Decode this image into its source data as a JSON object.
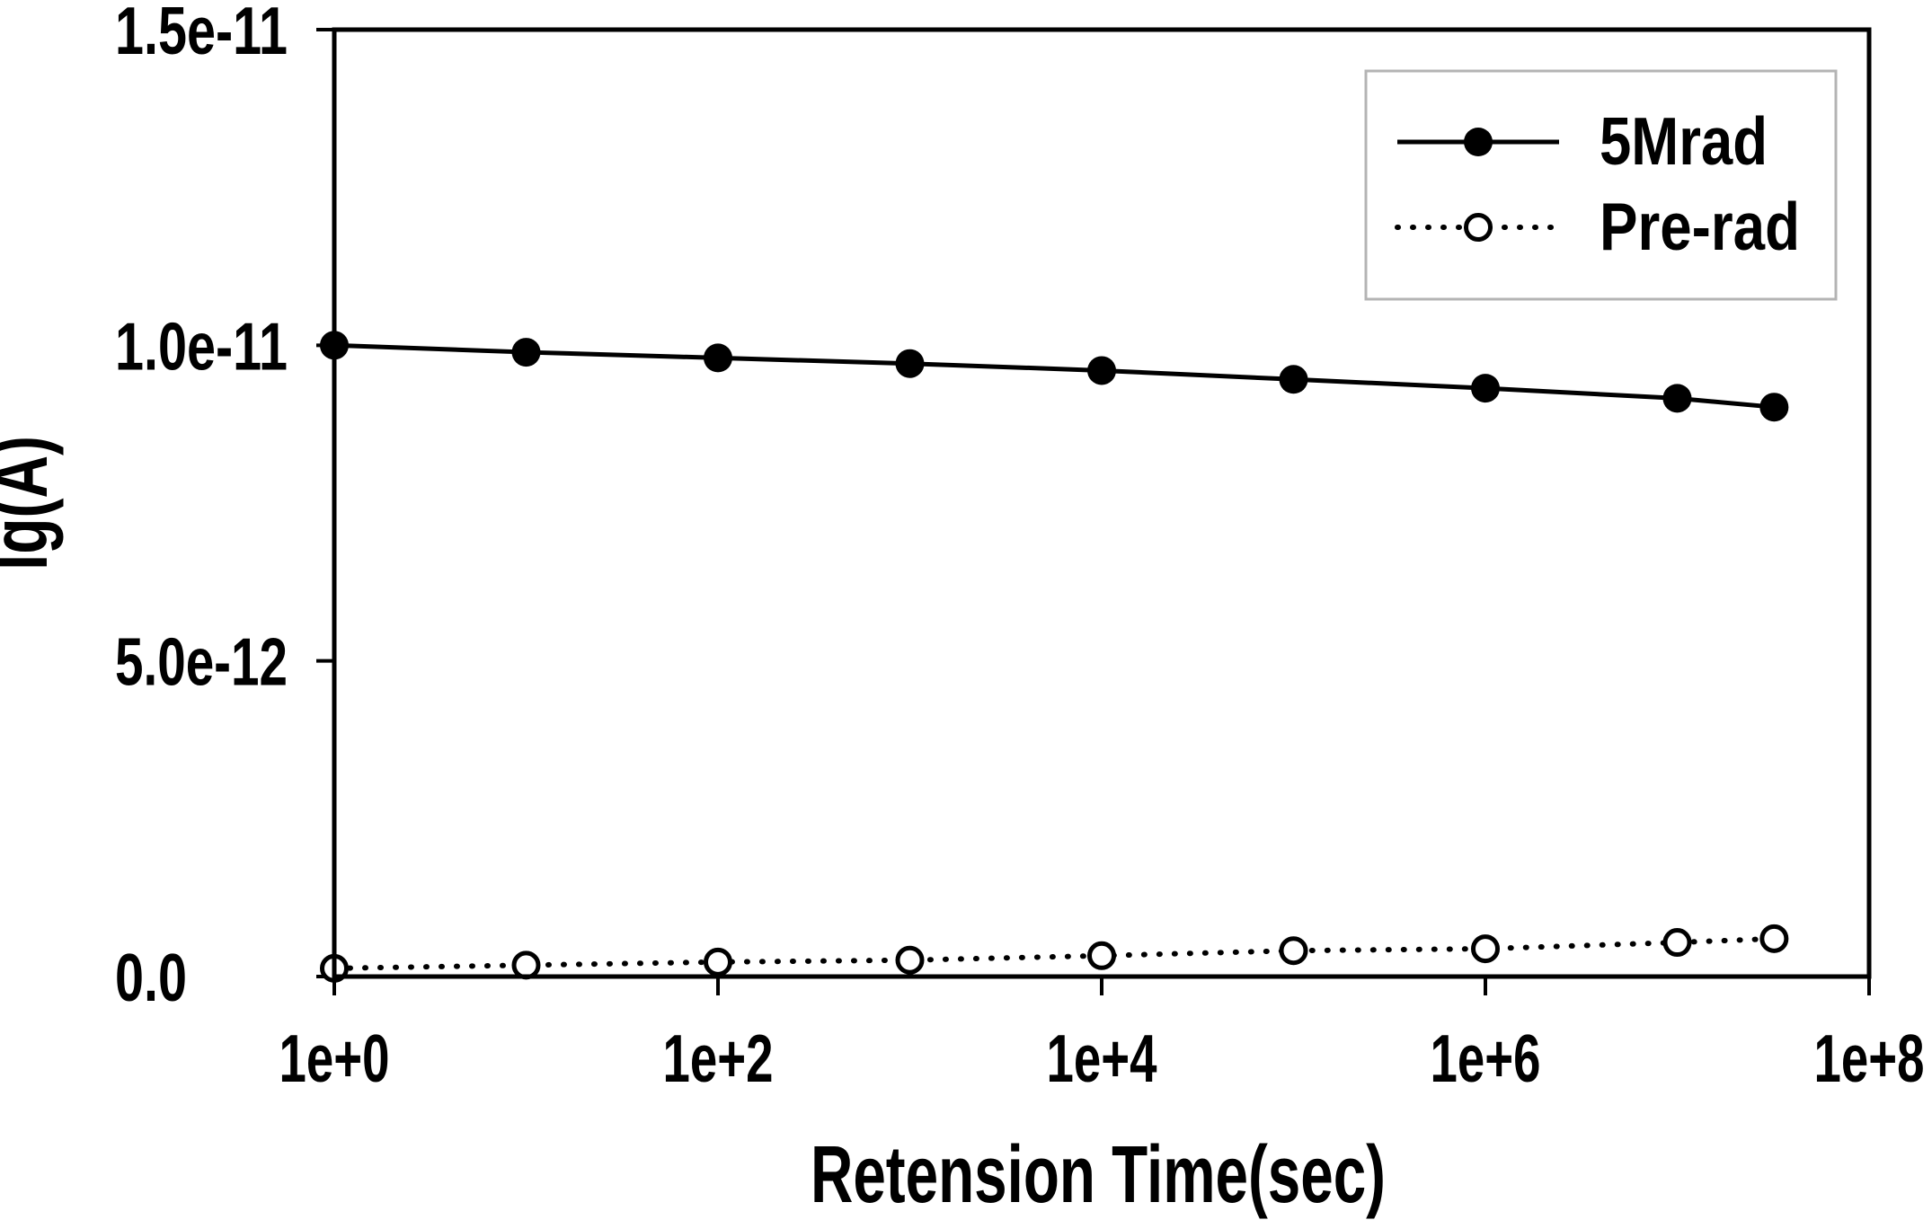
{
  "figure": {
    "background": "#ffffff",
    "foreground": "#000000",
    "legend_border_color": "#b4b4b4"
  },
  "chart_data": {
    "type": "line",
    "title": "",
    "xlabel": "Retension Time(sec)",
    "ylabel": "lg(A)",
    "x_scale": "log",
    "y_scale": "linear",
    "xlim": [
      1,
      100000000
    ],
    "ylim": [
      0,
      1.5e-11
    ],
    "grid": false,
    "legend_position": "top-right",
    "x_ticks": [
      {
        "value": 1,
        "label": "1e+0"
      },
      {
        "value": 100,
        "label": "1e+2"
      },
      {
        "value": 10000,
        "label": "1e+4"
      },
      {
        "value": 1000000,
        "label": "1e+6"
      },
      {
        "value": 100000000,
        "label": "1e+8"
      }
    ],
    "y_ticks": [
      {
        "value": 0,
        "label": "0.0"
      },
      {
        "value": 5e-12,
        "label": "5.0e-12"
      },
      {
        "value": 1e-11,
        "label": "1.0e-11"
      },
      {
        "value": 1.5e-11,
        "label": "1.5e-11"
      }
    ],
    "series": [
      {
        "name": "5Mrad",
        "line_style": "solid",
        "marker": "filled-circle",
        "color": "#000000",
        "points": [
          [
            1,
            1e-11
          ],
          [
            10,
            9.89e-12
          ],
          [
            100,
            9.8e-12
          ],
          [
            1000,
            9.71e-12
          ],
          [
            10000,
            9.6e-12
          ],
          [
            100000,
            9.46e-12
          ],
          [
            1000000,
            9.32e-12
          ],
          [
            10000000,
            9.16e-12
          ],
          [
            32000000,
            9.02e-12
          ]
        ]
      },
      {
        "name": "Pre-rad",
        "line_style": "dotted",
        "marker": "open-circle",
        "color": "#000000",
        "points": [
          [
            1,
            1.3e-13
          ],
          [
            10,
            1.8e-13
          ],
          [
            100,
            2.3e-13
          ],
          [
            1000,
            2.6e-13
          ],
          [
            10000,
            3.3e-13
          ],
          [
            100000,
            4.1e-13
          ],
          [
            1000000,
            4.4e-13
          ],
          [
            10000000,
            5.4e-13
          ],
          [
            32000000,
            6e-13
          ]
        ]
      }
    ]
  }
}
